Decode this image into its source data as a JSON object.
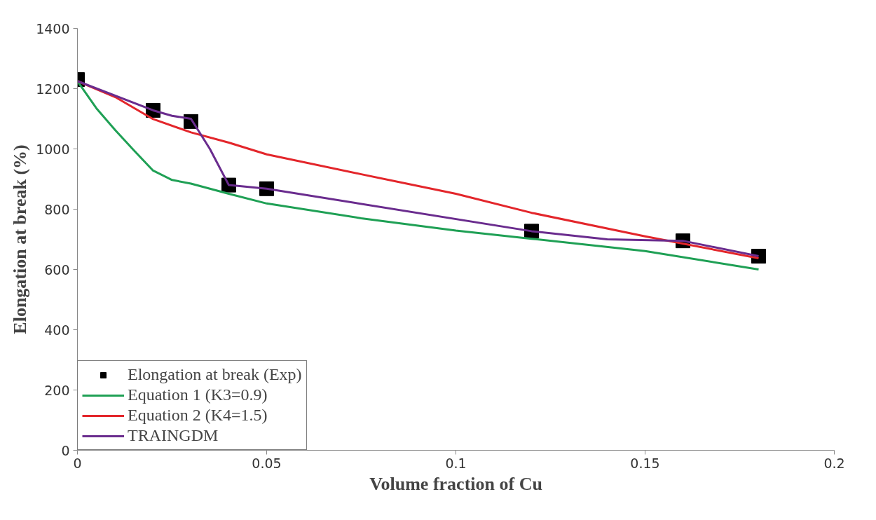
{
  "chart_data": {
    "type": "line",
    "xlabel": "Volume fraction of Cu",
    "ylabel": "Elongation at break (%)",
    "xlim": [
      0,
      0.2
    ],
    "xticks": [
      0,
      0.05,
      0.1,
      0.15,
      0.2
    ],
    "ylim": [
      0,
      1400
    ],
    "yticks": [
      0,
      200,
      400,
      600,
      800,
      1000,
      1200,
      1400
    ],
    "grid": false,
    "legend": "bottom left",
    "series": [
      {
        "name": "Elongation at break (Exp)",
        "type": "scatter",
        "marker": "square",
        "color": "#000000",
        "x": [
          0,
          0.02,
          0.03,
          0.04,
          0.05,
          0.12,
          0.16,
          0.18
        ],
        "values": [
          1230,
          1128,
          1091,
          880,
          868,
          727,
          695,
          644
        ]
      },
      {
        "name": "Equation 1 (K3=0.9)",
        "color": "#1fa055",
        "x": [
          0,
          0.005,
          0.01,
          0.015,
          0.02,
          0.025,
          0.03,
          0.04,
          0.05,
          0.075,
          0.1,
          0.12,
          0.15,
          0.18
        ],
        "values": [
          1225,
          1135,
          1062,
          994,
          928,
          897,
          885,
          851,
          819,
          770,
          729,
          702,
          661,
          600
        ]
      },
      {
        "name": "Equation 2 (K4=1.5)",
        "color": "#e3262b",
        "x": [
          0,
          0.01,
          0.02,
          0.03,
          0.04,
          0.05,
          0.075,
          0.1,
          0.12,
          0.15,
          0.18
        ],
        "values": [
          1225,
          1172,
          1099,
          1055,
          1021,
          982,
          916,
          851,
          788,
          710,
          637
        ]
      },
      {
        "name": "TRAINGDM",
        "color": "#6a2c8e",
        "x": [
          0,
          0.02,
          0.025,
          0.03,
          0.035,
          0.04,
          0.05,
          0.12,
          0.14,
          0.16,
          0.18
        ],
        "values": [
          1225,
          1128,
          1110,
          1100,
          1000,
          880,
          868,
          727,
          700,
          695,
          644
        ]
      }
    ]
  }
}
